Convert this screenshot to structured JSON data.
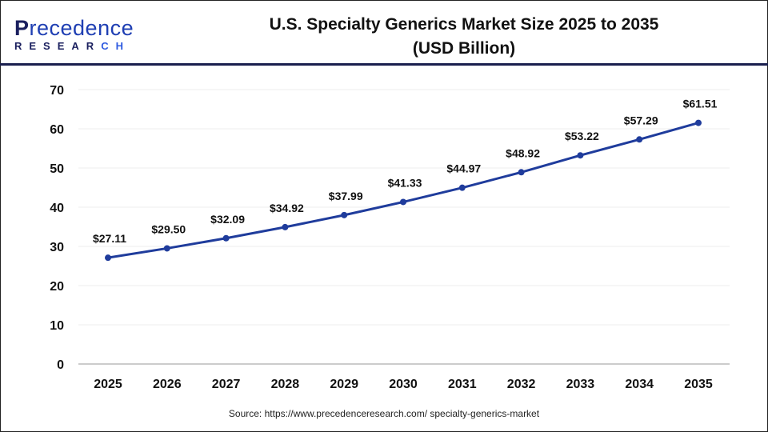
{
  "logo": {
    "top_initial": "P",
    "top_rest": "recedence",
    "bottom_main": "RESEAR",
    "bottom_accent": "CH"
  },
  "header": {
    "title_line1": "U.S. Specialty Generics Market Size 2025 to 2035",
    "title_line2": "(USD Billion)"
  },
  "source": "Source: https://www.precedenceresearch.com/ specialty-generics-market",
  "colors": {
    "line": "#1f3c9c",
    "header_rule": "#1a1f4e",
    "grid": "#eeeeee"
  },
  "chart_data": {
    "type": "line",
    "title": "U.S. Specialty Generics Market Size 2025 to 2035 (USD Billion)",
    "xlabel": "",
    "ylabel": "",
    "categories": [
      "2025",
      "2026",
      "2027",
      "2028",
      "2029",
      "2030",
      "2031",
      "2032",
      "2033",
      "2034",
      "2035"
    ],
    "values": [
      27.11,
      29.5,
      32.09,
      34.92,
      37.99,
      41.33,
      44.97,
      48.92,
      53.22,
      57.29,
      61.51
    ],
    "data_labels": [
      "$27.11",
      "$29.50",
      "$32.09",
      "$34.92",
      "$37.99",
      "$41.33",
      "$44.97",
      "$48.92",
      "$53.22",
      "$57.29",
      "$61.51"
    ],
    "ylim": [
      0,
      70
    ],
    "yticks": [
      0,
      10,
      20,
      30,
      40,
      50,
      60,
      70
    ],
    "grid": true,
    "legend": "none"
  }
}
